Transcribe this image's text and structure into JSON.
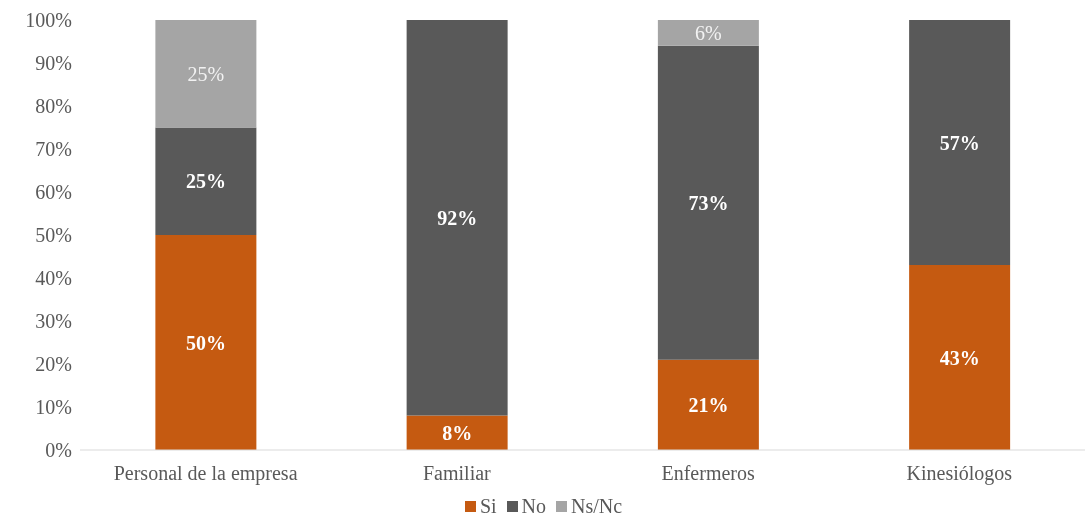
{
  "chart_data": {
    "type": "bar",
    "stacked": true,
    "categories": [
      "Personal de la empresa",
      "Familiar",
      "Enfermeros",
      "Kinesiólogos"
    ],
    "series": [
      {
        "name": "Si",
        "color": "#c55a11",
        "values": [
          50,
          8,
          21,
          43
        ],
        "value_labels": [
          "50%",
          "8%",
          "21%",
          "43%"
        ]
      },
      {
        "name": "No",
        "color": "#595959",
        "values": [
          25,
          92,
          73,
          57
        ],
        "value_labels": [
          "25%",
          "92%",
          "73%",
          "57%"
        ]
      },
      {
        "name": "Ns/Nc",
        "color": "#a5a5a5",
        "values": [
          25,
          null,
          6,
          null
        ],
        "value_labels": [
          "25%",
          null,
          "6%",
          null
        ]
      }
    ],
    "ylim": [
      0,
      100
    ],
    "yticks": [
      {
        "value": 0,
        "label": "0%"
      },
      {
        "value": 10,
        "label": "10%"
      },
      {
        "value": 20,
        "label": "20%"
      },
      {
        "value": 30,
        "label": "30%"
      },
      {
        "value": 40,
        "label": "40%"
      },
      {
        "value": 50,
        "label": "50%"
      },
      {
        "value": 60,
        "label": "60%"
      },
      {
        "value": 70,
        "label": "70%"
      },
      {
        "value": 80,
        "label": "80%"
      },
      {
        "value": 90,
        "label": "90%"
      },
      {
        "value": 100,
        "label": "100%"
      }
    ],
    "grid": false,
    "legend": "bottom"
  }
}
